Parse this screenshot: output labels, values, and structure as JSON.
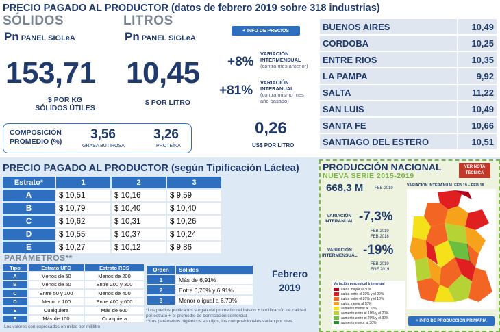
{
  "header": {
    "title": "PRECIO PAGADO AL PRODUCTOR (datos de febrero 2019 sobre 318 industrias)"
  },
  "solidos": {
    "title": "SÓLIDOS",
    "pn_prefix": "Pn",
    "pn_label": "PANEL SIGLeA",
    "value": "153,71",
    "unit_line1": "$ POR KG",
    "unit_line2": "SÓLIDOS ÚTILES"
  },
  "litros": {
    "title": "LITROS",
    "pn_prefix": "Pn",
    "pn_label": "PANEL SIGLeA",
    "value": "10,45",
    "unit": "$ POR LITRO"
  },
  "info_precios_button": "+ INFO DE PRECIOS",
  "variaciones": [
    {
      "value": "+8%",
      "label1": "VARIACIÓN",
      "label2": "INTERMENSUAL",
      "sub1": "(contra mes anterior)",
      "sub2": ""
    },
    {
      "value": "+81%",
      "label1": "VARIACIÓN",
      "label2": "INTERANUAL",
      "sub1": "(contra mismo mes",
      "sub2": "año pasado)"
    }
  ],
  "diff": {
    "value": "0,26",
    "unit": "US$ POR LITRO"
  },
  "composicion": {
    "label1": "COMPOSICIÓN",
    "label2": "PROMEDIO (%)",
    "grasa_value": "3,56",
    "grasa_label": "GRASA BUTIROSA",
    "proteina_value": "3,26",
    "proteina_label": "PROTEÍNA"
  },
  "provincias": [
    {
      "name": "BUENOS AIRES",
      "value": "10,49"
    },
    {
      "name": "CORDOBA",
      "value": "10,25"
    },
    {
      "name": "ENTRE RIOS",
      "value": "10,35"
    },
    {
      "name": "LA PAMPA",
      "value": "9,92"
    },
    {
      "name": "SALTA",
      "value": "11,22"
    },
    {
      "name": "SAN LUIS",
      "value": "10,49"
    },
    {
      "name": "SANTA FE",
      "value": "10,66"
    },
    {
      "name": "SANTIAGO DEL ESTERO",
      "value": "10,51"
    }
  ],
  "tipificacion": {
    "title": "PRECIO PAGADO AL PRODUCTOR (según Tipificación Láctea)",
    "headers": [
      "Estrato*",
      "1",
      "2",
      "3"
    ],
    "rows": [
      {
        "label": "A",
        "values": [
          "$ 10,51",
          "$ 10,16",
          "$ 9,59"
        ]
      },
      {
        "label": "B",
        "values": [
          "$ 10,79",
          "$ 10,40",
          "$ 10,40"
        ]
      },
      {
        "label": "C",
        "values": [
          "$ 10,62",
          "$ 10,31",
          "$ 10,26"
        ]
      },
      {
        "label": "D",
        "values": [
          "$ 10,55",
          "$ 10,37",
          "$ 10,24"
        ]
      },
      {
        "label": "E",
        "values": [
          "$ 10,27",
          "$ 10,12",
          "$ 9,86"
        ]
      }
    ]
  },
  "parametros": {
    "title": "PARÁMETROS**",
    "headers": [
      "Tipo",
      "Estrato UFC",
      "Estrato RCS"
    ],
    "rows": [
      [
        "A",
        "Menos de 50",
        "Menos de 200"
      ],
      [
        "B",
        "Menos de 50",
        "Entre 200 y 300"
      ],
      [
        "C",
        "Entre 50 y 100",
        "Menos de 400"
      ],
      [
        "D",
        "Menor a 100",
        "Entre 400 y 600"
      ],
      [
        "E",
        "Cualquiera",
        "Más de 600"
      ],
      [
        "E",
        "Más de 100",
        "Cualquiera"
      ]
    ],
    "footnote": "Los valores son expresados en miles por mililitro"
  },
  "orden": {
    "headers": [
      "Orden",
      "Sólidos"
    ],
    "rows": [
      [
        "1",
        "Más de 6,91%"
      ],
      [
        "2",
        "Entre 6,70% y 6,91%"
      ],
      [
        "3",
        "Menor o igual a 6,70%"
      ]
    ],
    "note1": "*Los precios publicados surgen del promedio del básico + bonificación de calidad",
    "note2": "por estrato + el promedio de bonificación comercial.",
    "note3": "**Los parámetros higiénicos son fijos, los composicionales varían por mes."
  },
  "periodo": {
    "mes": "Febrero",
    "anio": "2019"
  },
  "produccion": {
    "title": "PRODUCCIÓN NACIONAL",
    "subtitle": "NUEVA SERIE 2015-2019",
    "nota_button1": "VER NOTA",
    "nota_button2": "TÉCNICA",
    "volumen": "668,3 M",
    "volumen_fecha": "FEB 2019",
    "map_title": "VARIACIÓN INTERANUAL FEB 19 – FEB 18",
    "interanual_label1": "VARIACIÓN",
    "interanual_label2": "INTERANUAL",
    "interanual_value": "-7,3%",
    "interanual_f1": "FEB 2019",
    "interanual_f2": "FEB 2018",
    "intermensual_label1": "VARIACIÓN",
    "intermensual_label2": "INTERMENSUAL",
    "intermensual_value": "-19%",
    "intermensual_f1": "FEB 2019",
    "intermensual_f2": "ENE 2019",
    "legend_title": "Variación porcentual interanual",
    "legend": [
      {
        "label": "caída mayor al 30%",
        "color": "#b3001b"
      },
      {
        "label": "caída entre el 30% y el 20%",
        "color": "#e02020"
      },
      {
        "label": "caída entre el 20% y el 10%",
        "color": "#f26522"
      },
      {
        "label": "caída menor al 10%",
        "color": "#f7a21b"
      },
      {
        "label": "aumento menor al 10%",
        "color": "#f5e11a"
      },
      {
        "label": "aumento entre el 10% y el 20%",
        "color": "#b5d334"
      },
      {
        "label": "aumento entre el 20% y el 30%",
        "color": "#6cbf3e"
      },
      {
        "label": "aumento mayor al 30%",
        "color": "#2e8b3a"
      }
    ],
    "info_button": "+ INFO DE PRODUCCIÓN PRIMARIA"
  }
}
